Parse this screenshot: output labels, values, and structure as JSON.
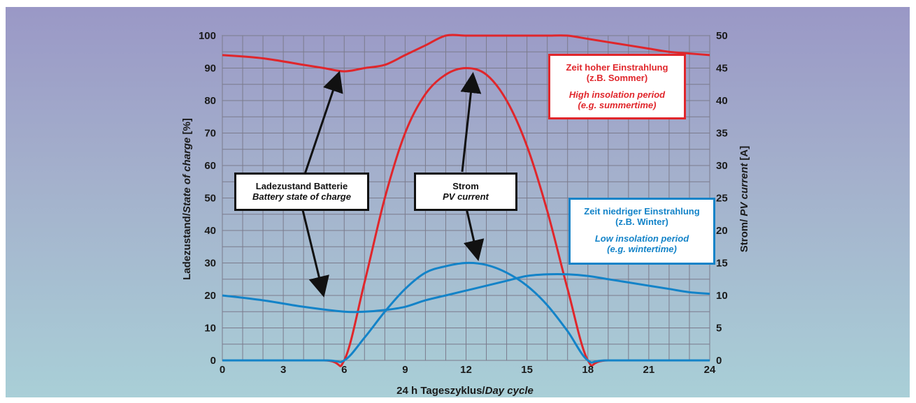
{
  "chart_data": {
    "type": "line",
    "xlabel": "24 h Tageszyklus/",
    "xlabel_italic": "Day cycle",
    "ylabel_left": "Ladezustand/",
    "ylabel_left_italic": "State of charge",
    "ylabel_left_unit": " [%]",
    "ylabel_right": "Strom/ ",
    "ylabel_right_italic": "PV current",
    "ylabel_right_unit": " [A]",
    "xlim": [
      0,
      24
    ],
    "ylim_left": [
      0,
      100
    ],
    "ylim_right": [
      0,
      50
    ],
    "x_ticks": [
      "0",
      "3",
      "6",
      "9",
      "12",
      "15",
      "18",
      "21",
      "24"
    ],
    "y_left_ticks": [
      "0",
      "10",
      "20",
      "30",
      "40",
      "50",
      "60",
      "70",
      "80",
      "90",
      "100"
    ],
    "y_right_ticks": [
      "0",
      "5",
      "10",
      "15",
      "20",
      "25",
      "30",
      "35",
      "40",
      "45",
      "50"
    ],
    "grid": true,
    "series": [
      {
        "color": "#e0262b",
        "axis": "left",
        "x": [
          0,
          2,
          4,
          5,
          6,
          7,
          8,
          9,
          10,
          11,
          12,
          13,
          14,
          15,
          16,
          17,
          18,
          19,
          20,
          21,
          22,
          23,
          24
        ],
        "y": [
          94,
          93,
          91,
          90,
          89,
          90,
          91,
          94,
          97,
          100,
          100,
          100,
          100,
          100,
          100,
          100,
          99,
          98,
          97,
          96,
          95,
          94.5,
          94
        ]
      },
      {
        "color": "#e0262b",
        "axis": "right",
        "x": [
          0,
          5,
          6,
          7,
          8,
          9,
          10,
          11,
          12,
          13,
          14,
          15,
          16,
          17,
          18,
          19,
          24
        ],
        "y": [
          0,
          0,
          0,
          12,
          25,
          35,
          41,
          44,
          45,
          44,
          40,
          33,
          23,
          11,
          0,
          0,
          0
        ]
      },
      {
        "color": "#1383c8",
        "axis": "left",
        "x": [
          0,
          2,
          4,
          6,
          7,
          8,
          9,
          10,
          11,
          12,
          13,
          14,
          15,
          16,
          17,
          18,
          19,
          20,
          21,
          22,
          23,
          24
        ],
        "y": [
          20,
          18.5,
          16.5,
          15,
          15,
          15.5,
          16.5,
          18.5,
          20,
          21.5,
          23,
          24.5,
          26,
          26.5,
          26.5,
          26,
          25,
          24,
          23,
          22,
          21,
          20.5
        ]
      },
      {
        "color": "#1383c8",
        "axis": "right",
        "x": [
          0,
          5,
          6,
          7,
          8,
          9,
          10,
          11,
          12,
          13,
          14,
          15,
          16,
          17,
          18,
          19,
          24
        ],
        "y": [
          0,
          0,
          0,
          3.5,
          7.5,
          11,
          13.5,
          14.5,
          15,
          14.7,
          13.5,
          11.5,
          8.5,
          4.5,
          0,
          0,
          0
        ]
      }
    ],
    "annotations": {
      "battery": {
        "line1": "Ladezustand Batterie",
        "line2": "Battery state of charge"
      },
      "current": {
        "line1": "Strom",
        "line2": "PV current"
      },
      "high": {
        "line1": "Zeit hoher Einstrahlung",
        "line2": "(z.B. Sommer)",
        "line3": "High insolation period",
        "line4": "(e.g. summertime)"
      },
      "low": {
        "line1": "Zeit niedriger Einstrahlung",
        "line2": "(z.B. Winter)",
        "line3": "Low insolation period",
        "line4": "(e.g. wintertime)"
      }
    },
    "colors": {
      "summer": "#e0262b",
      "winter": "#1383c8",
      "annotation": "#111111"
    }
  }
}
